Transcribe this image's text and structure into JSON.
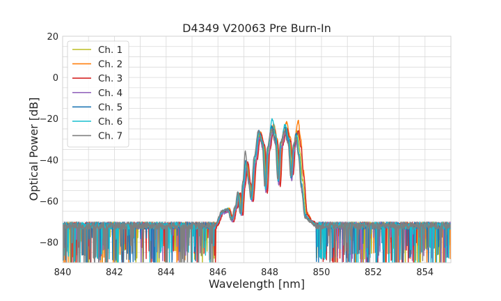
{
  "chart_data": {
    "type": "line",
    "title": "D4349 V20063 Pre Burn-In",
    "xlabel": "Wavelength [nm]",
    "ylabel": "Optical Power [dB]",
    "xlim": [
      840,
      855
    ],
    "ylim": [
      -90,
      20
    ],
    "xticks": [
      840,
      842,
      844,
      846,
      848,
      850,
      852,
      854
    ],
    "yticks": [
      20,
      0,
      -20,
      -40,
      -60,
      -80
    ],
    "grid": true,
    "legend_position": "top-left",
    "noise_floor_db": -72,
    "noise_floor_range_db": [
      -90,
      -69
    ],
    "series": [
      {
        "name": "Ch. 1",
        "color": "#bcbd22",
        "shift": 0.02,
        "points": [
          [
            845.9,
            -72
          ],
          [
            846.2,
            -65
          ],
          [
            846.4,
            -64
          ],
          [
            846.55,
            -69
          ],
          [
            846.7,
            -63
          ],
          [
            846.8,
            -56
          ],
          [
            846.9,
            -66
          ],
          [
            847.0,
            -52
          ],
          [
            847.1,
            -42
          ],
          [
            847.2,
            -51
          ],
          [
            847.3,
            -59
          ],
          [
            847.45,
            -40
          ],
          [
            847.6,
            -27
          ],
          [
            847.75,
            -33
          ],
          [
            847.85,
            -54
          ],
          [
            847.95,
            -35
          ],
          [
            848.1,
            -24
          ],
          [
            848.25,
            -31
          ],
          [
            848.35,
            -51
          ],
          [
            848.45,
            -32
          ],
          [
            848.6,
            -24
          ],
          [
            848.75,
            -30
          ],
          [
            848.85,
            -48
          ],
          [
            848.95,
            -32
          ],
          [
            849.05,
            -26
          ],
          [
            849.15,
            -36
          ],
          [
            849.25,
            -50
          ],
          [
            849.4,
            -66
          ],
          [
            849.6,
            -70
          ],
          [
            849.8,
            -72
          ]
        ]
      },
      {
        "name": "Ch. 2",
        "color": "#ff7f0e",
        "shift": 0.05,
        "points": [
          [
            845.9,
            -72
          ],
          [
            846.2,
            -65
          ],
          [
            846.4,
            -64
          ],
          [
            846.55,
            -69
          ],
          [
            846.7,
            -63
          ],
          [
            846.8,
            -57
          ],
          [
            846.9,
            -66
          ],
          [
            847.0,
            -53
          ],
          [
            847.1,
            -42
          ],
          [
            847.2,
            -51
          ],
          [
            847.3,
            -59
          ],
          [
            847.45,
            -39
          ],
          [
            847.6,
            -27
          ],
          [
            847.75,
            -33
          ],
          [
            847.85,
            -55
          ],
          [
            847.95,
            -35
          ],
          [
            848.1,
            -23
          ],
          [
            848.25,
            -30
          ],
          [
            848.35,
            -50
          ],
          [
            848.45,
            -31
          ],
          [
            848.6,
            -22
          ],
          [
            848.75,
            -29
          ],
          [
            848.85,
            -45
          ],
          [
            848.95,
            -27
          ],
          [
            849.05,
            -21
          ],
          [
            849.15,
            -30
          ],
          [
            849.25,
            -45
          ],
          [
            849.4,
            -66
          ],
          [
            849.6,
            -70
          ],
          [
            849.8,
            -72
          ]
        ]
      },
      {
        "name": "Ch. 3",
        "color": "#d62728",
        "shift": 0.06,
        "points": [
          [
            845.9,
            -72
          ],
          [
            846.2,
            -65
          ],
          [
            846.4,
            -65
          ],
          [
            846.55,
            -70
          ],
          [
            846.7,
            -63
          ],
          [
            846.8,
            -56
          ],
          [
            846.9,
            -67
          ],
          [
            847.0,
            -52
          ],
          [
            847.1,
            -41
          ],
          [
            847.2,
            -51
          ],
          [
            847.3,
            -60
          ],
          [
            847.45,
            -40
          ],
          [
            847.6,
            -27
          ],
          [
            847.75,
            -33
          ],
          [
            847.85,
            -56
          ],
          [
            847.95,
            -35
          ],
          [
            848.1,
            -25
          ],
          [
            848.25,
            -32
          ],
          [
            848.35,
            -53
          ],
          [
            848.45,
            -33
          ],
          [
            848.6,
            -25
          ],
          [
            848.75,
            -31
          ],
          [
            848.85,
            -47
          ],
          [
            848.95,
            -31
          ],
          [
            849.05,
            -26
          ],
          [
            849.15,
            -34
          ],
          [
            849.25,
            -48
          ],
          [
            849.4,
            -67
          ],
          [
            849.6,
            -70
          ],
          [
            849.8,
            -72
          ]
        ]
      },
      {
        "name": "Ch. 4",
        "color": "#9467bd",
        "shift": 0.0,
        "points": [
          [
            845.9,
            -72
          ],
          [
            846.2,
            -66
          ],
          [
            846.4,
            -65
          ],
          [
            846.55,
            -70
          ],
          [
            846.7,
            -64
          ],
          [
            846.8,
            -57
          ],
          [
            846.9,
            -67
          ],
          [
            847.0,
            -54
          ],
          [
            847.1,
            -44
          ],
          [
            847.2,
            -52
          ],
          [
            847.3,
            -60
          ],
          [
            847.45,
            -42
          ],
          [
            847.6,
            -29
          ],
          [
            847.75,
            -35
          ],
          [
            847.85,
            -56
          ],
          [
            847.95,
            -37
          ],
          [
            848.1,
            -27
          ],
          [
            848.25,
            -33
          ],
          [
            848.35,
            -52
          ],
          [
            848.45,
            -34
          ],
          [
            848.6,
            -27
          ],
          [
            848.75,
            -33
          ],
          [
            848.85,
            -50
          ],
          [
            848.95,
            -36
          ],
          [
            849.05,
            -31
          ],
          [
            849.15,
            -40
          ],
          [
            849.25,
            -56
          ],
          [
            849.4,
            -68
          ],
          [
            849.6,
            -70
          ],
          [
            849.8,
            -72
          ]
        ]
      },
      {
        "name": "Ch. 5",
        "color": "#1f77b4",
        "shift": -0.02,
        "points": [
          [
            845.9,
            -72
          ],
          [
            846.2,
            -65
          ],
          [
            846.4,
            -64
          ],
          [
            846.55,
            -69
          ],
          [
            846.7,
            -63
          ],
          [
            846.8,
            -56
          ],
          [
            846.9,
            -66
          ],
          [
            847.0,
            -52
          ],
          [
            847.1,
            -40
          ],
          [
            847.2,
            -50
          ],
          [
            847.3,
            -59
          ],
          [
            847.45,
            -39
          ],
          [
            847.6,
            -26
          ],
          [
            847.75,
            -32
          ],
          [
            847.85,
            -53
          ],
          [
            847.95,
            -34
          ],
          [
            848.1,
            -24
          ],
          [
            848.25,
            -30
          ],
          [
            848.35,
            -51
          ],
          [
            848.45,
            -32
          ],
          [
            848.6,
            -24
          ],
          [
            848.75,
            -31
          ],
          [
            848.85,
            -49
          ],
          [
            848.95,
            -33
          ],
          [
            849.05,
            -27
          ],
          [
            849.15,
            -37
          ],
          [
            849.25,
            -52
          ],
          [
            849.4,
            -67
          ],
          [
            849.6,
            -70
          ],
          [
            849.8,
            -72
          ]
        ]
      },
      {
        "name": "Ch. 6",
        "color": "#17becf",
        "shift": -0.01,
        "points": [
          [
            845.9,
            -72
          ],
          [
            846.2,
            -65
          ],
          [
            846.4,
            -64
          ],
          [
            846.55,
            -69
          ],
          [
            846.7,
            -63
          ],
          [
            846.8,
            -56
          ],
          [
            846.9,
            -66
          ],
          [
            847.0,
            -52
          ],
          [
            847.1,
            -41
          ],
          [
            847.2,
            -50
          ],
          [
            847.3,
            -59
          ],
          [
            847.45,
            -39
          ],
          [
            847.6,
            -27
          ],
          [
            847.75,
            -32
          ],
          [
            847.85,
            -54
          ],
          [
            847.95,
            -34
          ],
          [
            848.1,
            -20
          ],
          [
            848.25,
            -28
          ],
          [
            848.35,
            -50
          ],
          [
            848.45,
            -31
          ],
          [
            848.6,
            -23
          ],
          [
            848.75,
            -30
          ],
          [
            848.85,
            -48
          ],
          [
            848.95,
            -32
          ],
          [
            849.05,
            -28
          ],
          [
            849.15,
            -38
          ],
          [
            849.25,
            -54
          ],
          [
            849.4,
            -68
          ],
          [
            849.6,
            -70
          ],
          [
            849.8,
            -72
          ]
        ]
      },
      {
        "name": "Ch. 7",
        "color": "#7f7f7f",
        "shift": -0.04,
        "points": [
          [
            845.9,
            -72
          ],
          [
            846.2,
            -65
          ],
          [
            846.4,
            -64
          ],
          [
            846.55,
            -69
          ],
          [
            846.7,
            -63
          ],
          [
            846.8,
            -56
          ],
          [
            846.9,
            -66
          ],
          [
            847.0,
            -51
          ],
          [
            847.1,
            -36
          ],
          [
            847.2,
            -48
          ],
          [
            847.3,
            -58
          ],
          [
            847.45,
            -38
          ],
          [
            847.6,
            -26
          ],
          [
            847.75,
            -32
          ],
          [
            847.85,
            -53
          ],
          [
            847.95,
            -34
          ],
          [
            848.1,
            -25
          ],
          [
            848.25,
            -31
          ],
          [
            848.35,
            -50
          ],
          [
            848.45,
            -32
          ],
          [
            848.6,
            -26
          ],
          [
            848.75,
            -32
          ],
          [
            848.85,
            -48
          ],
          [
            848.95,
            -33
          ],
          [
            849.05,
            -29
          ],
          [
            849.15,
            -38
          ],
          [
            849.25,
            -53
          ],
          [
            849.4,
            -68
          ],
          [
            849.6,
            -70
          ],
          [
            849.8,
            -72
          ]
        ]
      }
    ]
  }
}
